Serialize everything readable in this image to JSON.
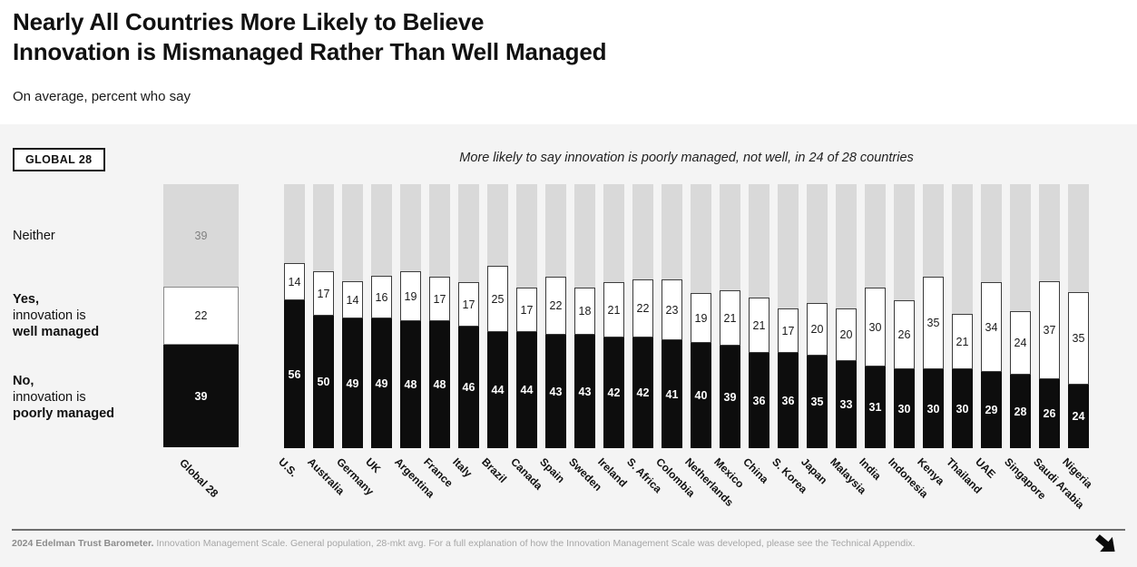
{
  "header": {
    "title_lines": [
      "Nearly All Countries More Likely to Believe",
      "Innovation is Mismanaged Rather Than Well Managed"
    ],
    "subtitle": "On average, percent who say"
  },
  "badge_label": "GLOBAL 28",
  "left_labels": {
    "neither": "Neither",
    "yes_lines": [
      "Yes,",
      "innovation is",
      "well managed"
    ],
    "no_lines": [
      "No,",
      "innovation is",
      "poorly managed"
    ]
  },
  "chart_data": {
    "type": "bar",
    "stacked": true,
    "title": "Nearly All Countries More Likely to Believe Innovation is Mismanaged Rather Than Well Managed",
    "subtitle": "On average, percent who say",
    "annotation": "More likely to say innovation is poorly managed, not well, in 24 of 28 countries",
    "ylim": [
      0,
      100
    ],
    "grid": false,
    "colors": {
      "poorly": "#0d0d0d",
      "well": "#ffffff",
      "neither": "#d9d9d9",
      "panel": "#f4f4f4"
    },
    "global": {
      "label": "Global 28",
      "neither": 39,
      "well": 22,
      "poorly": 39
    },
    "categories": [
      "U.S.",
      "Australia",
      "Germany",
      "UK",
      "Argentina",
      "France",
      "Italy",
      "Brazil",
      "Canada",
      "Spain",
      "Sweden",
      "Ireland",
      "S. Africa",
      "Colombia",
      "Netherlands",
      "Mexico",
      "China",
      "S. Korea",
      "Japan",
      "Malaysia",
      "India",
      "Indonesia",
      "Kenya",
      "Thailand",
      "UAE",
      "Singapore",
      "Saudi Arabia",
      "Nigeria"
    ],
    "series": [
      {
        "name": "No, innovation is poorly managed",
        "values": [
          56,
          50,
          49,
          49,
          48,
          48,
          46,
          44,
          44,
          43,
          43,
          42,
          42,
          41,
          40,
          39,
          36,
          36,
          35,
          33,
          31,
          30,
          30,
          30,
          29,
          28,
          26,
          24
        ]
      },
      {
        "name": "Yes, innovation is well managed",
        "values": [
          14,
          17,
          14,
          16,
          19,
          17,
          17,
          25,
          17,
          22,
          18,
          21,
          22,
          23,
          19,
          21,
          21,
          17,
          20,
          20,
          30,
          26,
          35,
          21,
          34,
          24,
          37,
          35
        ]
      }
    ]
  },
  "footer": {
    "bold": "2024 Edelman Trust Barometer.",
    "text": " Innovation Management Scale. General population, 28-mkt avg. For a full explanation of how the Innovation Management Scale was developed, please see the Technical Appendix."
  }
}
